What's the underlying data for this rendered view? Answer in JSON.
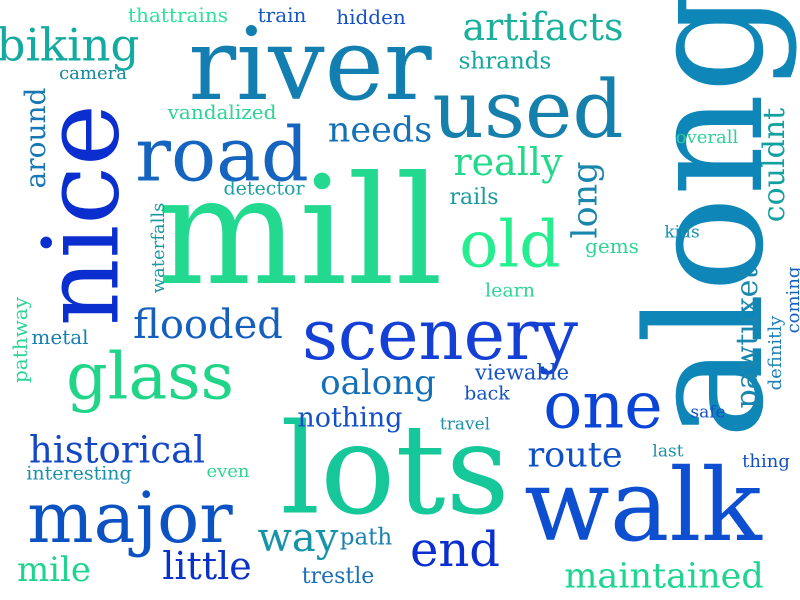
{
  "words": [
    {
      "id": "mill",
      "text": "mill",
      "color": "#22d98f"
    },
    {
      "id": "along",
      "text": "along",
      "color": "#0e86b8"
    },
    {
      "id": "lots",
      "text": "lots",
      "color": "#16c79a"
    },
    {
      "id": "walk",
      "text": "walk",
      "color": "#0d4fd0"
    },
    {
      "id": "river",
      "text": "river",
      "color": "#127fb0"
    },
    {
      "id": "nice",
      "text": "nice",
      "color": "#0b2fcf"
    },
    {
      "id": "scenery",
      "text": "scenery",
      "color": "#1440d6"
    },
    {
      "id": "glass",
      "text": "glass",
      "color": "#20d488"
    },
    {
      "id": "used",
      "text": "used",
      "color": "#1580ac"
    },
    {
      "id": "road",
      "text": "road",
      "color": "#1564c0"
    },
    {
      "id": "major",
      "text": "major",
      "color": "#0d52c2"
    },
    {
      "id": "old",
      "text": "old",
      "color": "#26ee90"
    },
    {
      "id": "one",
      "text": "one",
      "color": "#0a45d8"
    },
    {
      "id": "biking",
      "text": "biking",
      "color": "#13aa9f"
    },
    {
      "id": "artifacts",
      "text": "artifacts",
      "color": "#1bb09b"
    },
    {
      "id": "flooded",
      "text": "flooded",
      "color": "#1560bd"
    },
    {
      "id": "historical",
      "text": "historical",
      "color": "#1447c4"
    },
    {
      "id": "end",
      "text": "end",
      "color": "#0b2fcf"
    },
    {
      "id": "route",
      "text": "route",
      "color": "#0d4fc6"
    },
    {
      "id": "way",
      "text": "way",
      "color": "#1494a6"
    },
    {
      "id": "little",
      "text": "little",
      "color": "#0b32c8"
    },
    {
      "id": "maintained",
      "text": "maintained",
      "color": "#1ed48e"
    },
    {
      "id": "mile",
      "text": "mile",
      "color": "#1ed48e"
    },
    {
      "id": "needs",
      "text": "needs",
      "color": "#1670b6"
    },
    {
      "id": "really",
      "text": "really",
      "color": "#22d98a"
    },
    {
      "id": "oalong",
      "text": "oalong",
      "color": "#1370b8"
    },
    {
      "id": "long",
      "text": "long",
      "color": "#1a86ad"
    },
    {
      "id": "couldnt",
      "text": "couldnt",
      "color": "#12a0a0"
    },
    {
      "id": "pawtuxet",
      "text": "pawtuxet",
      "color": "#1a86ad"
    },
    {
      "id": "around",
      "text": "around",
      "color": "#1778b4"
    },
    {
      "id": "nothing",
      "text": "nothing",
      "color": "#1450c6"
    },
    {
      "id": "thattrains",
      "text": "thattrains",
      "color": "#2ee29a"
    },
    {
      "id": "train",
      "text": "train",
      "color": "#1456c4"
    },
    {
      "id": "hidden",
      "text": "hidden",
      "color": "#1450c6"
    },
    {
      "id": "shrands",
      "text": "shrands",
      "color": "#15a6a0"
    },
    {
      "id": "camera",
      "text": "camera",
      "color": "#16889c"
    },
    {
      "id": "vandalized",
      "text": "vandalized",
      "color": "#2ed495"
    },
    {
      "id": "overall",
      "text": "overall",
      "color": "#2ecf98"
    },
    {
      "id": "detector",
      "text": "detector",
      "color": "#1a9fa8"
    },
    {
      "id": "rails",
      "text": "rails",
      "color": "#1a9aa0"
    },
    {
      "id": "waterfalls",
      "text": "waterfalls",
      "color": "#1a9aa0"
    },
    {
      "id": "kids",
      "text": "kids",
      "color": "#1b8fb0"
    },
    {
      "id": "gems",
      "text": "gems",
      "color": "#2ed495"
    },
    {
      "id": "definitly",
      "text": "definitly",
      "color": "#1a7fb5"
    },
    {
      "id": "coming",
      "text": "coming",
      "color": "#1860c0"
    },
    {
      "id": "learn",
      "text": "learn",
      "color": "#2ed495"
    },
    {
      "id": "pathway",
      "text": "pathway",
      "color": "#2ed495"
    },
    {
      "id": "metal",
      "text": "metal",
      "color": "#1680b0"
    },
    {
      "id": "viewable",
      "text": "viewable",
      "color": "#1452c4"
    },
    {
      "id": "back",
      "text": "back",
      "color": "#1452c4"
    },
    {
      "id": "safe",
      "text": "safe",
      "color": "#1452c4"
    },
    {
      "id": "travel",
      "text": "travel",
      "color": "#1a90a8"
    },
    {
      "id": "last",
      "text": "last",
      "color": "#1a90a8"
    },
    {
      "id": "thing",
      "text": "thing",
      "color": "#1452c4"
    },
    {
      "id": "interesting",
      "text": "interesting",
      "color": "#1a90a8"
    },
    {
      "id": "even",
      "text": "even",
      "color": "#2ed495"
    },
    {
      "id": "path",
      "text": "path",
      "color": "#1a80b0"
    },
    {
      "id": "trestle",
      "text": "trestle",
      "color": "#1a6fb8"
    }
  ]
}
